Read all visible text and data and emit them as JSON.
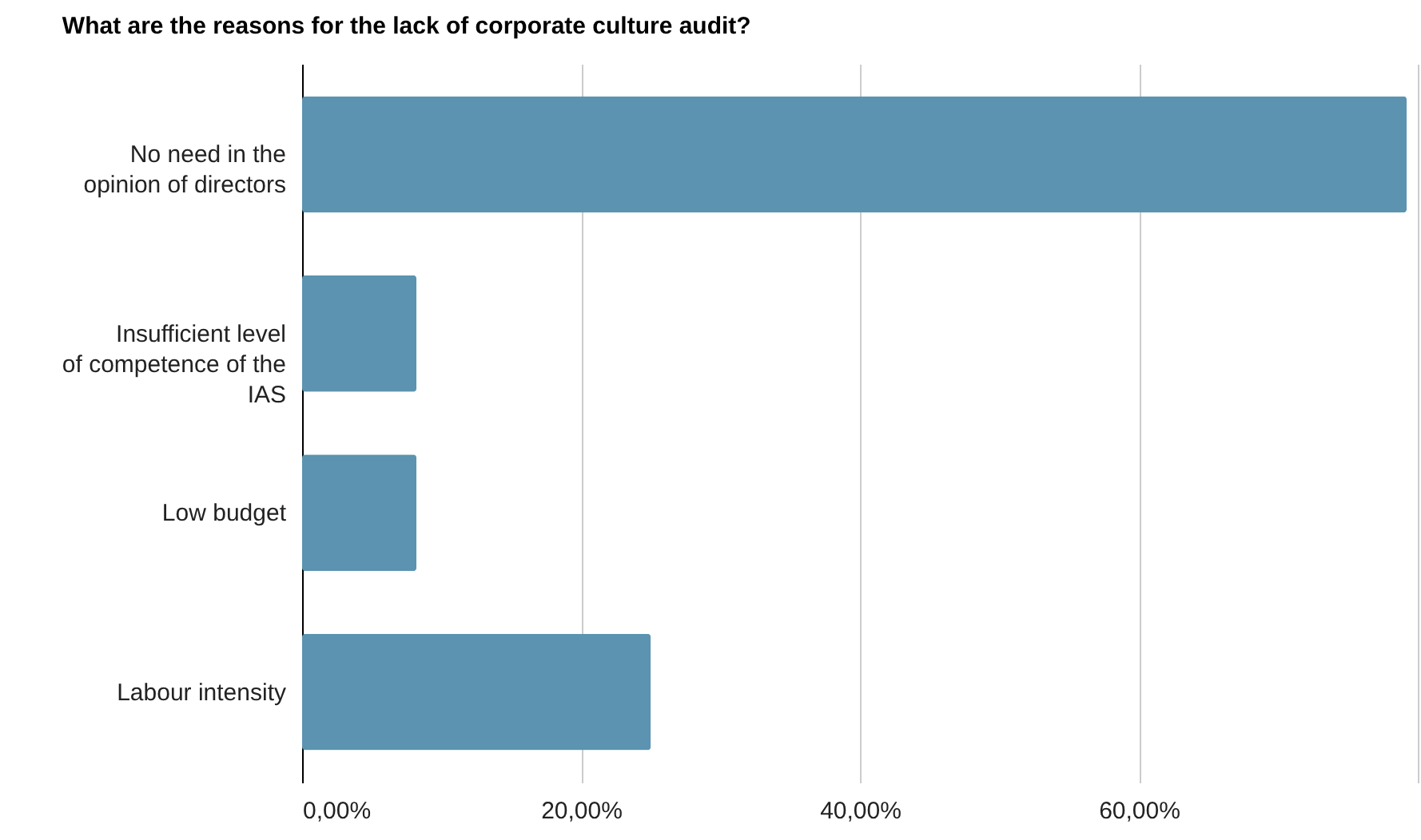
{
  "chart_data": {
    "type": "bar",
    "orientation": "horizontal",
    "title": "What are the reasons for the lack of corporate culture audit?",
    "categories": [
      "No need in the opinion of directors",
      "Insufficient level of competence of the IAS",
      "Low budget",
      "Labour intensity"
    ],
    "values": [
      79.2,
      8.2,
      8.2,
      25
    ],
    "color": "#5b93b0",
    "xlim": [
      0,
      80
    ],
    "xticks": [
      {
        "value": 0,
        "label": "0,00%"
      },
      {
        "value": 20,
        "label": "20,00%"
      },
      {
        "value": 40,
        "label": "40,00%"
      },
      {
        "value": 60,
        "label": "60,00%"
      },
      {
        "value": 80,
        "label": null
      }
    ],
    "grid": "x"
  }
}
